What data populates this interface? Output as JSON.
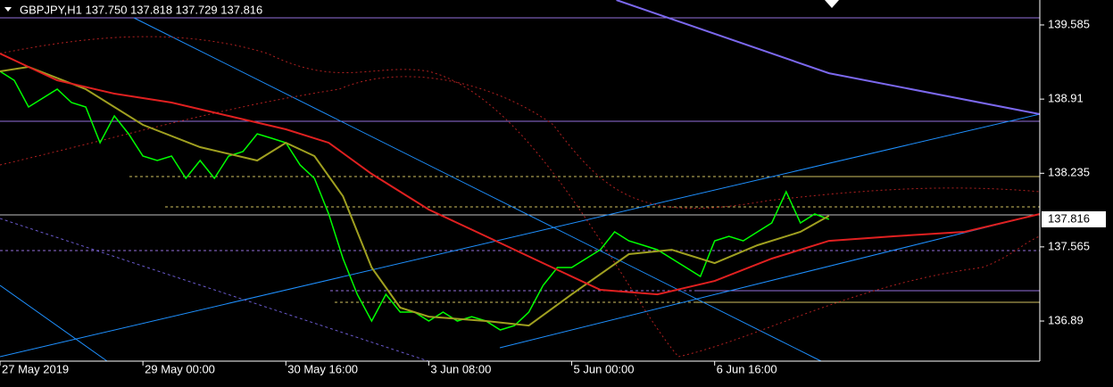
{
  "chart_data": {
    "type": "line",
    "title": "GBPJPY,H1 137.750 137.818 137.729 137.816",
    "xlim": [
      0,
      291
    ],
    "ylim": [
      136.525,
      139.812
    ],
    "xticks": [
      {
        "value": 0,
        "label": "27 May 2019"
      },
      {
        "value": 40,
        "label": "29 May 00:00"
      },
      {
        "value": 80,
        "label": "30 May 16:00"
      },
      {
        "value": 120,
        "label": "3 Jun 08:00"
      },
      {
        "value": 160,
        "label": "5 Jun 00:00"
      },
      {
        "value": 200,
        "label": "6 Jun 16:00"
      }
    ],
    "yticks": [
      139.585,
      138.91,
      138.235,
      137.565,
      136.89
    ],
    "last_price": {
      "value": 137.816,
      "label": "137.816"
    },
    "series": [
      {
        "color": "#00ff00",
        "x": [
          0,
          4,
          8,
          12,
          16,
          20,
          24,
          28,
          32,
          36,
          40,
          44,
          48,
          52,
          56,
          60,
          64,
          68,
          72,
          76,
          80,
          84,
          88,
          92,
          96,
          100,
          104,
          108,
          112,
          116,
          120,
          124,
          128,
          132,
          136,
          140,
          144,
          148,
          152,
          156,
          160,
          164,
          168,
          172,
          176,
          180,
          184,
          188,
          192,
          196,
          200,
          204,
          208,
          212,
          216,
          220,
          224,
          228,
          232
        ],
        "values": [
          139.163,
          139.081,
          138.838,
          138.919,
          139.0,
          138.879,
          138.838,
          138.513,
          138.757,
          138.594,
          138.392,
          138.351,
          138.392,
          138.189,
          138.351,
          138.189,
          138.392,
          138.432,
          138.594,
          138.554,
          138.513,
          138.31,
          138.189,
          137.864,
          137.458,
          137.133,
          136.89,
          137.133,
          136.971,
          136.971,
          136.89,
          136.971,
          136.89,
          136.93,
          136.89,
          136.809,
          136.849,
          136.971,
          137.215,
          137.377,
          137.377,
          137.458,
          137.539,
          137.702,
          137.62,
          137.58,
          137.539,
          137.458,
          137.377,
          137.296,
          137.62,
          137.661,
          137.62,
          137.702,
          137.783,
          138.067,
          137.783,
          137.864,
          137.816
        ]
      },
      {
        "color": "#a0a020",
        "x": [
          0,
          8,
          24,
          40,
          56,
          72,
          80,
          88,
          96,
          104,
          112,
          120,
          136,
          148,
          160,
          176,
          188,
          200,
          212,
          224,
          232
        ],
        "values": [
          139.163,
          139.203,
          139.0,
          138.676,
          138.473,
          138.351,
          138.513,
          138.392,
          138.026,
          137.377,
          137.012,
          136.93,
          136.89,
          136.849,
          137.133,
          137.499,
          137.539,
          137.417,
          137.58,
          137.702,
          137.848
        ]
      },
      {
        "color": "#e02020",
        "x": [
          0,
          16,
          32,
          48,
          64,
          80,
          92,
          104,
          120,
          136,
          152,
          168,
          184,
          200,
          216,
          232,
          250,
          270,
          291
        ],
        "values": [
          139.325,
          139.081,
          138.96,
          138.879,
          138.757,
          138.635,
          138.513,
          138.229,
          137.905,
          137.661,
          137.417,
          137.174,
          137.133,
          137.255,
          137.458,
          137.62,
          137.661,
          137.702,
          137.864
        ]
      },
      {
        "color": "#7b68ee",
        "x": [
          172.5,
          232,
          291
        ],
        "values": [
          139.812,
          139.146,
          138.773
        ]
      }
    ]
  }
}
